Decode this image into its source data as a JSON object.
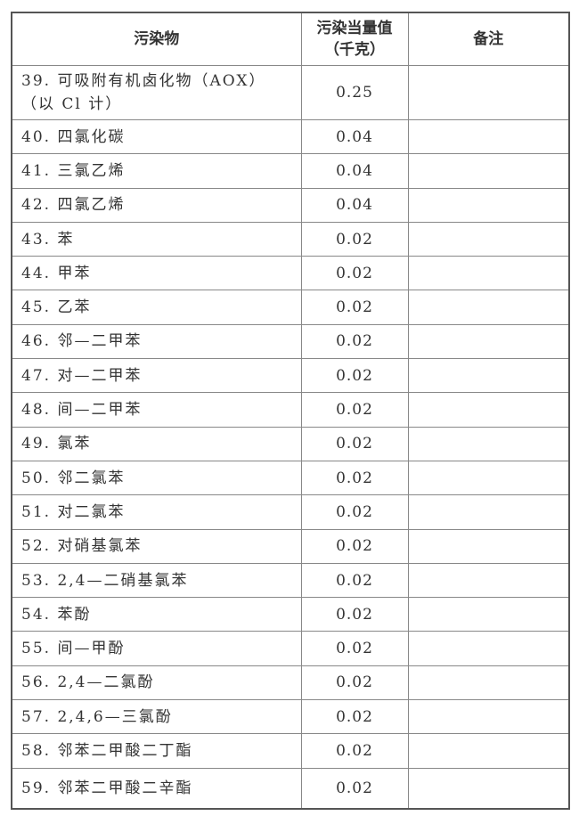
{
  "table": {
    "headers": {
      "pollutant": "污染物",
      "equivalent_line1": "污染当量值",
      "equivalent_line2": "（千克）",
      "remark": "备注"
    },
    "rows": [
      {
        "name": "39. 可吸附有机卤化物（AOX）",
        "name2": "（以 Cl 计）",
        "value": "0.25",
        "remark": ""
      },
      {
        "name": "40. 四氯化碳",
        "value": "0.04",
        "remark": ""
      },
      {
        "name": "41. 三氯乙烯",
        "value": "0.04",
        "remark": ""
      },
      {
        "name": "42. 四氯乙烯",
        "value": "0.04",
        "remark": ""
      },
      {
        "name": "43. 苯",
        "value": "0.02",
        "remark": ""
      },
      {
        "name": "44. 甲苯",
        "value": "0.02",
        "remark": ""
      },
      {
        "name": "45. 乙苯",
        "value": "0.02",
        "remark": ""
      },
      {
        "name": "46. 邻—二甲苯",
        "value": "0.02",
        "remark": ""
      },
      {
        "name": "47. 对—二甲苯",
        "value": "0.02",
        "remark": ""
      },
      {
        "name": "48. 间—二甲苯",
        "value": "0.02",
        "remark": ""
      },
      {
        "name": "49. 氯苯",
        "value": "0.02",
        "remark": ""
      },
      {
        "name": "50. 邻二氯苯",
        "value": "0.02",
        "remark": ""
      },
      {
        "name": "51. 对二氯苯",
        "value": "0.02",
        "remark": ""
      },
      {
        "name": "52. 对硝基氯苯",
        "value": "0.02",
        "remark": ""
      },
      {
        "name": "53. 2,4—二硝基氯苯",
        "value": "0.02",
        "remark": ""
      },
      {
        "name": "54. 苯酚",
        "value": "0.02",
        "remark": ""
      },
      {
        "name": "55. 间—甲酚",
        "value": "0.02",
        "remark": ""
      },
      {
        "name": "56. 2,4—二氯酚",
        "value": "0.02",
        "remark": ""
      },
      {
        "name": "57. 2,4,6—三氯酚",
        "value": "0.02",
        "remark": ""
      },
      {
        "name": "58. 邻苯二甲酸二丁酯",
        "value": "0.02",
        "remark": ""
      },
      {
        "name": "59. 邻苯二甲酸二辛酯",
        "value": "0.02",
        "remark": ""
      }
    ]
  }
}
